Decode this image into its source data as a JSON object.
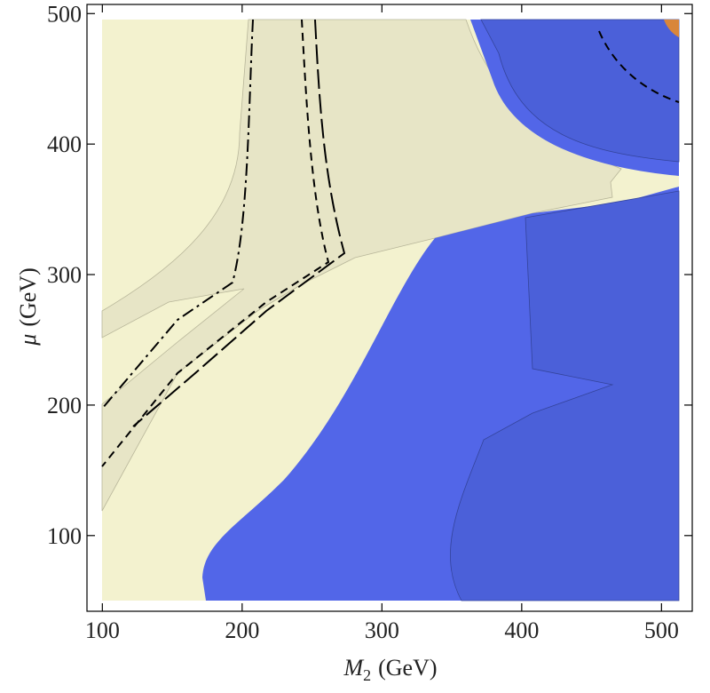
{
  "chart_data": {
    "type": "contour",
    "xlabel": {
      "symbol": "M",
      "subscript": "2",
      "unit": "(GeV)"
    },
    "ylabel": {
      "symbol": "μ",
      "unit": "(GeV)"
    },
    "xlim": [
      89,
      522
    ],
    "xticks": [
      100,
      200,
      300,
      400,
      500
    ],
    "ylim": [
      42,
      507
    ],
    "yticks": [
      100,
      200,
      300,
      400,
      500
    ]
  }
}
